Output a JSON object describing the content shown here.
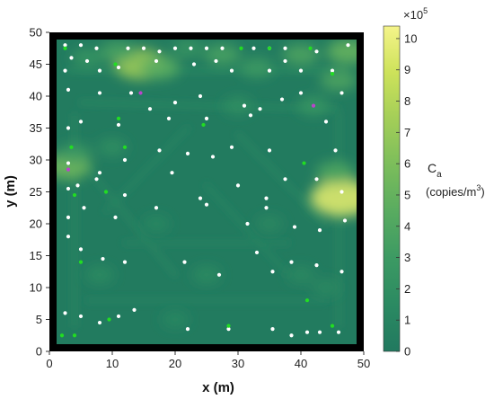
{
  "chart_data": {
    "type": "heatmap",
    "title": "",
    "xlabel": "x (m)",
    "ylabel": "y (m)",
    "xlim": [
      0,
      50
    ],
    "ylim": [
      0,
      50
    ],
    "xticks": [
      0,
      10,
      20,
      30,
      40,
      50
    ],
    "yticks": [
      0,
      5,
      10,
      15,
      20,
      25,
      30,
      35,
      40,
      45,
      50
    ],
    "grid": false,
    "colorbar": {
      "label": "C",
      "label_subscript": "a",
      "units": "(copies/m",
      "units_superscript": "3",
      "units_close": ")",
      "multiplier": "×10",
      "multiplier_exponent": "5",
      "range": [
        0,
        10.4
      ],
      "ticks": [
        0,
        1,
        2,
        3,
        4,
        5,
        6,
        7,
        8,
        9,
        10
      ],
      "colors": [
        "#21795f",
        "#2b8a62",
        "#3c9a63",
        "#58ab60",
        "#7bbd5b",
        "#a3ce58",
        "#cde25a",
        "#f5f48a"
      ]
    },
    "hotspots": [
      {
        "x": 14.5,
        "y": 45.0,
        "value": 7.2
      },
      {
        "x": 17.5,
        "y": 44.5,
        "value": 4.5
      },
      {
        "x": 11.0,
        "y": 47.0,
        "value": 3.6
      },
      {
        "x": 27.5,
        "y": 46.5,
        "value": 3.6
      },
      {
        "x": 40.0,
        "y": 46.5,
        "value": 3.8
      },
      {
        "x": 47.5,
        "y": 47.0,
        "value": 5.0
      },
      {
        "x": 46.0,
        "y": 42.5,
        "value": 3.8
      },
      {
        "x": 33.0,
        "y": 44.5,
        "value": 3.0
      },
      {
        "x": 22.0,
        "y": 47.5,
        "value": 2.5
      },
      {
        "x": 6.0,
        "y": 46.0,
        "value": 2.6
      },
      {
        "x": 46.5,
        "y": 24.0,
        "value": 9.5
      },
      {
        "x": 45.5,
        "y": 28.0,
        "value": 4.0
      },
      {
        "x": 3.0,
        "y": 29.0,
        "value": 5.5
      },
      {
        "x": 4.0,
        "y": 31.0,
        "value": 3.0
      },
      {
        "x": 42.0,
        "y": 38.5,
        "value": 2.6
      },
      {
        "x": 30.0,
        "y": 38.5,
        "value": 2.0
      },
      {
        "x": 10.0,
        "y": 32.0,
        "value": 2.0
      },
      {
        "x": 8.0,
        "y": 12.0,
        "value": 1.8
      },
      {
        "x": 25.0,
        "y": 12.0,
        "value": 1.8
      },
      {
        "x": 40.0,
        "y": 12.0,
        "value": 1.6
      },
      {
        "x": 17.0,
        "y": 20.0,
        "value": 1.4
      },
      {
        "x": 35.0,
        "y": 20.0,
        "value": 1.5
      },
      {
        "x": 20.0,
        "y": 5.0,
        "value": 1.4
      },
      {
        "x": 44.0,
        "y": 10.0,
        "value": 1.6
      }
    ],
    "corridors": [
      {
        "from": [
          3,
          44
        ],
        "to": [
          47,
          44
        ],
        "value": 1.7
      },
      {
        "from": [
          5,
          39
        ],
        "to": [
          46,
          38
        ],
        "value": 1.6
      },
      {
        "from": [
          4,
          37
        ],
        "to": [
          4,
          4
        ],
        "value": 1.5
      },
      {
        "from": [
          46,
          37
        ],
        "to": [
          46,
          4
        ],
        "value": 1.5
      },
      {
        "from": [
          5,
          30
        ],
        "to": [
          20,
          12
        ],
        "value": 1.2
      },
      {
        "from": [
          9,
          22
        ],
        "to": [
          22,
          35
        ],
        "value": 1.1
      },
      {
        "from": [
          25,
          26
        ],
        "to": [
          38,
          12
        ],
        "value": 1.1
      },
      {
        "from": [
          30,
          34
        ],
        "to": [
          44,
          20
        ],
        "value": 1.2
      },
      {
        "from": [
          6,
          8
        ],
        "to": [
          44,
          8
        ],
        "value": 1.0
      },
      {
        "from": [
          12,
          17
        ],
        "to": [
          38,
          17
        ],
        "value": 1.0
      }
    ],
    "series": [
      {
        "color": "#ffffff",
        "x": [
          2.5,
          5,
          7.5,
          12.5,
          15,
          17.5,
          20,
          22.5,
          25,
          27.5,
          32.5,
          35,
          37.5,
          42.5,
          47.5,
          2.5,
          3.5,
          6,
          8,
          11,
          17,
          23,
          26.5,
          29,
          35,
          37.5,
          40,
          45,
          3,
          8,
          13,
          16,
          20,
          24,
          31,
          33.5,
          37,
          40,
          46.5,
          3,
          5,
          11,
          19,
          25,
          32,
          44,
          3,
          8,
          12,
          17.5,
          22,
          26,
          29,
          35,
          45.5,
          3,
          4.5,
          7.5,
          12,
          19.5,
          24,
          30,
          34.5,
          37.5,
          42.5,
          46.5,
          3,
          5.5,
          10.5,
          17,
          25,
          31.5,
          34.5,
          39,
          43,
          47,
          3,
          5,
          8.5,
          12,
          21.5,
          27,
          33,
          35.5,
          38.5,
          42.5,
          46.5,
          2.5,
          5,
          8,
          11,
          13.5,
          22,
          28.5,
          35.5,
          38.5,
          41,
          43,
          46
        ],
        "y": [
          48,
          48,
          47.5,
          47.5,
          47.5,
          47,
          47.5,
          47.5,
          47.5,
          47.5,
          47.5,
          47.5,
          47.5,
          47,
          48,
          44,
          46,
          45.5,
          44,
          44.5,
          45.5,
          45,
          45.5,
          44,
          44,
          45.5,
          44,
          44,
          41,
          40.5,
          40.5,
          38,
          39,
          40,
          38.5,
          38,
          39.5,
          40.5,
          40.5,
          35,
          36,
          35.5,
          36.5,
          36.5,
          37,
          36,
          29.5,
          28,
          30,
          31.5,
          31,
          30.5,
          32,
          31.5,
          31.5,
          25.5,
          26,
          27,
          24.5,
          28,
          24,
          26,
          24,
          27,
          27,
          25,
          21,
          22.5,
          21,
          22.5,
          23,
          20,
          22.5,
          19.5,
          19,
          20.5,
          18,
          16,
          14.5,
          14,
          14,
          12,
          15.5,
          12.5,
          14,
          13.5,
          12.5,
          6,
          5.5,
          4.5,
          5.5,
          6.5,
          3.5,
          3.5,
          3.5,
          2.5,
          3,
          3,
          3
        ]
      },
      {
        "color": "#22dd22",
        "x": [
          2.5,
          10.5,
          30.5,
          35,
          41.5,
          45,
          11,
          24.5,
          3.5,
          12,
          40.5,
          9,
          5,
          41,
          9.5,
          28.5,
          45,
          4,
          2,
          4
        ],
        "y": [
          47.5,
          45,
          47.5,
          47.5,
          47.5,
          43.5,
          36.5,
          35.5,
          32,
          32,
          29.5,
          25,
          14,
          8,
          5,
          4,
          4,
          2.5,
          2.5,
          24.5
        ]
      },
      {
        "color": "#bb44cc",
        "x": [
          14.5,
          42,
          3
        ],
        "y": [
          40.5,
          38.5,
          28.5
        ]
      }
    ]
  }
}
